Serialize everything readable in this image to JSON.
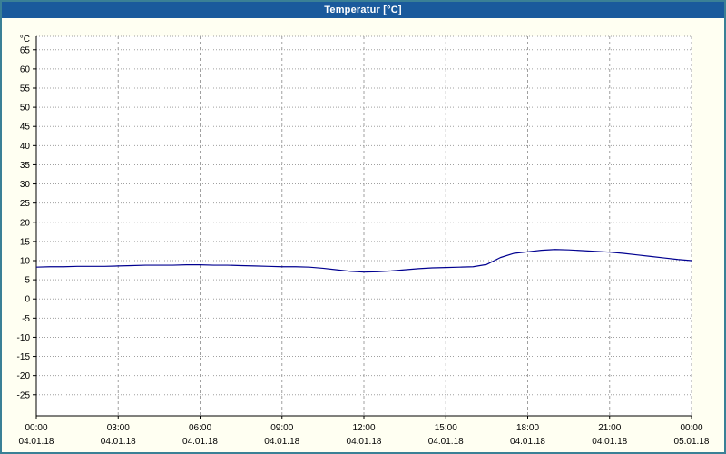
{
  "window": {
    "title": "Temperatur [°C]",
    "title_bar_color": "#1a5a9c",
    "frame_color": "#3a8096",
    "background_color": "#fffff2"
  },
  "chart_data": {
    "type": "line",
    "title": "Temperatur [°C]",
    "ylabel_unit": "°C",
    "xlabel": "",
    "grid": true,
    "legend": "none",
    "plot_background": "#ffffff",
    "grid_color": "#a0a0a0",
    "xlim": [
      0,
      24
    ],
    "ylim": [
      -30.5,
      68.5
    ],
    "y_ticks": [
      65,
      60,
      55,
      50,
      45,
      40,
      35,
      30,
      25,
      20,
      15,
      10,
      5,
      0,
      -5,
      -10,
      -15,
      -20,
      -25
    ],
    "x_ticks": [
      {
        "hour": 0,
        "time": "00:00",
        "date": "04.01.18"
      },
      {
        "hour": 3,
        "time": "03:00",
        "date": "04.01.18"
      },
      {
        "hour": 6,
        "time": "06:00",
        "date": "04.01.18"
      },
      {
        "hour": 9,
        "time": "09:00",
        "date": "04.01.18"
      },
      {
        "hour": 12,
        "time": "12:00",
        "date": "04.01.18"
      },
      {
        "hour": 15,
        "time": "15:00",
        "date": "04.01.18"
      },
      {
        "hour": 18,
        "time": "18:00",
        "date": "04.01.18"
      },
      {
        "hour": 21,
        "time": "21:00",
        "date": "04.01.18"
      },
      {
        "hour": 24,
        "time": "00:00",
        "date": "05.01.18"
      }
    ],
    "series": [
      {
        "name": "Temperatur",
        "color": "#000090",
        "x": [
          0,
          0.5,
          1,
          1.5,
          2,
          2.5,
          3,
          3.5,
          4,
          4.5,
          5,
          5.5,
          6,
          6.5,
          7,
          7.5,
          8,
          8.5,
          9,
          9.5,
          10,
          10.5,
          11,
          11.5,
          12,
          12.5,
          13,
          13.5,
          14,
          14.5,
          15,
          15.5,
          16,
          16.5,
          17,
          17.5,
          18,
          18.5,
          19,
          19.5,
          20,
          20.5,
          21,
          21.5,
          22,
          22.5,
          23,
          23.5,
          24
        ],
        "values": [
          8.3,
          8.4,
          8.4,
          8.5,
          8.5,
          8.5,
          8.6,
          8.7,
          8.8,
          8.8,
          8.8,
          8.9,
          8.9,
          8.8,
          8.8,
          8.7,
          8.6,
          8.5,
          8.4,
          8.4,
          8.3,
          8.0,
          7.6,
          7.2,
          7.0,
          7.1,
          7.3,
          7.6,
          7.9,
          8.1,
          8.2,
          8.3,
          8.4,
          9.0,
          10.8,
          11.9,
          12.3,
          12.7,
          12.9,
          12.8,
          12.6,
          12.4,
          12.2,
          11.9,
          11.5,
          11.1,
          10.7,
          10.3,
          10.0
        ]
      }
    ]
  }
}
